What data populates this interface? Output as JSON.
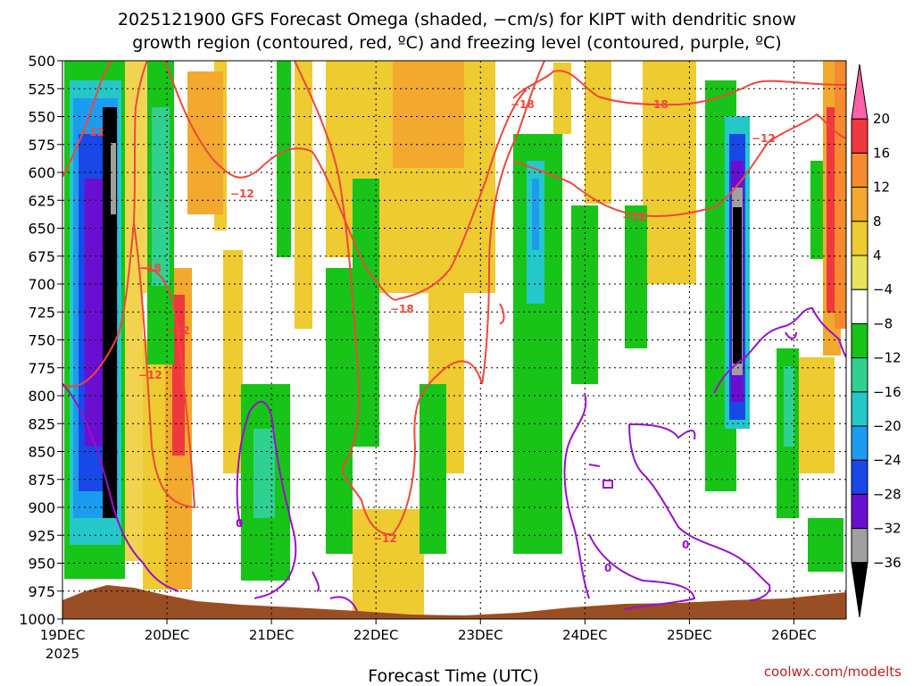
{
  "chart_data": {
    "type": "heatmap",
    "title": "2025121900 GFS Forecast Omega (shaded, −cm/s) for KIPT with dendritic snow",
    "subtitle": "growth region (contoured, red, ºC) and freezing level (contoured, purple, ºC)",
    "xlabel": "Forecast Time (UTC)",
    "ylabel": "",
    "x_ticks": [
      "19DEC",
      "20DEC",
      "21DEC",
      "22DEC",
      "23DEC",
      "24DEC",
      "25DEC",
      "26DEC"
    ],
    "x_year_label": "2025",
    "y_ticks": [
      500,
      525,
      550,
      575,
      600,
      625,
      650,
      675,
      700,
      725,
      750,
      775,
      800,
      825,
      850,
      875,
      900,
      925,
      950,
      975,
      1000
    ],
    "ylim": [
      1000,
      500
    ],
    "xlim_days": [
      0,
      7.5
    ],
    "grid": true,
    "colorbar": {
      "labels": [
        "20",
        "16",
        "12",
        "8",
        "4",
        "−4",
        "−8",
        "−12",
        "−16",
        "−20",
        "−24",
        "−28",
        "−32",
        "−36"
      ],
      "colors": [
        "#ff60a8",
        "#f0383f",
        "#f58a2e",
        "#f2a92e",
        "#eecb30",
        "#e8e35a",
        "#ffffff",
        "#18c418",
        "#30d090",
        "#24c8c8",
        "#1c9cf0",
        "#1848e8",
        "#6a0fd0",
        "#a0a0a0",
        "#000000"
      ]
    },
    "contour_labels": {
      "dgz_red": [
        "−12",
        "−18"
      ],
      "freezing_purple": [
        "0"
      ]
    },
    "colors": {
      "dgz": "#f0473c",
      "freezing": "#9912c9",
      "terrain": "#9a4e23",
      "grid": "#000000"
    }
  },
  "credit": "coolwx.com/modelts"
}
